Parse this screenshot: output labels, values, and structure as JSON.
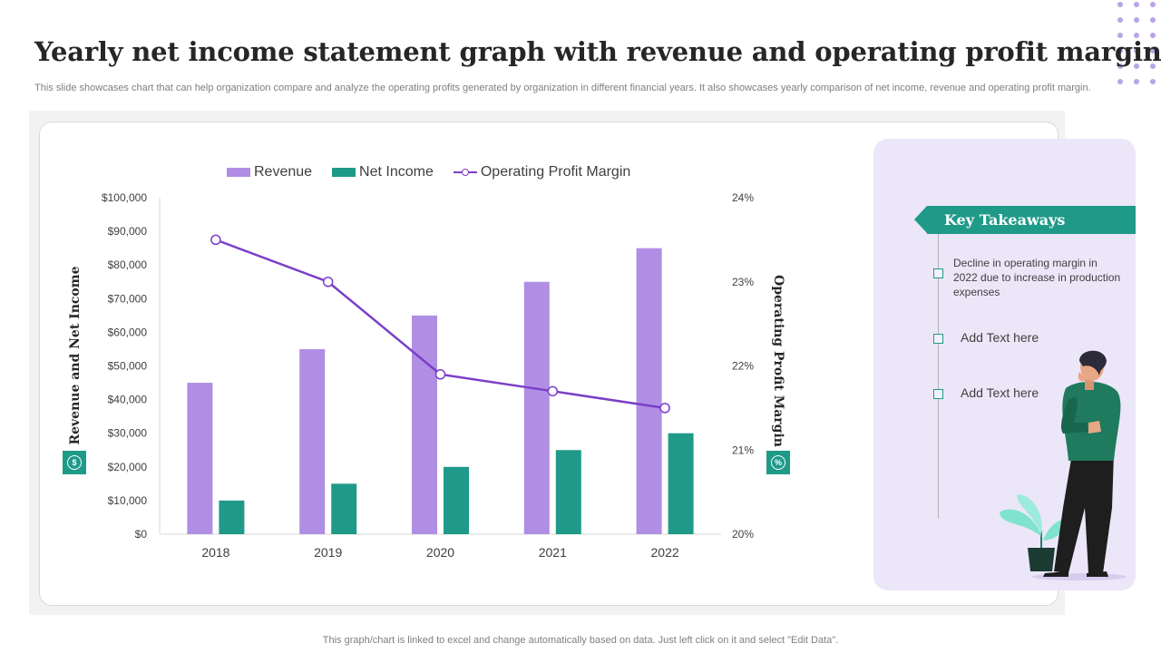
{
  "slide": {
    "title": "Yearly net income statement graph with revenue and operating profit margin",
    "subtitle": "This slide showcases chart that can help organization compare and analyze the operating profits generated by organization in different financial years. It also showcases yearly comparison of net income, revenue and operating profit margin.",
    "footer": "This graph/chart is linked to excel and change automatically based on data. Just left click on it and select \"Edit Data\"."
  },
  "chart_data": {
    "type": "bar",
    "categories": [
      "2018",
      "2019",
      "2020",
      "2021",
      "2022"
    ],
    "series": [
      {
        "name": "Revenue",
        "type": "bar",
        "axis": "left",
        "color": "#b08ee4",
        "values": [
          45000,
          55000,
          65000,
          75000,
          85000
        ]
      },
      {
        "name": "Net Income",
        "type": "bar",
        "axis": "left",
        "color": "#1f9a89",
        "values": [
          10000,
          15000,
          20000,
          25000,
          30000
        ]
      },
      {
        "name": "Operating Profit Margin",
        "type": "line",
        "axis": "right",
        "color": "#7b3fc8",
        "values": [
          23.5,
          23.0,
          21.9,
          21.7,
          21.5
        ]
      }
    ],
    "ylabel": "Revenue and Net Income",
    "y2label": "Operating Profit Margin",
    "ylim": [
      0,
      100000
    ],
    "y2lim": [
      20,
      24
    ],
    "yticks": [
      "$0",
      "$10,000",
      "$20,000",
      "$30,000",
      "$40,000",
      "$50,000",
      "$60,000",
      "$70,000",
      "$80,000",
      "$90,000",
      "$100,000"
    ],
    "y2ticks": [
      "20%",
      "21%",
      "22%",
      "23%",
      "24%"
    ],
    "legend": "top",
    "grid": false
  },
  "icons": {
    "left_axis": "dollar-coin-icon",
    "right_axis": "percent-coin-icon"
  },
  "takeaways": {
    "title": "Key Takeaways",
    "items": [
      "Decline in operating margin in 2022 due to increase in production expenses",
      "Add Text here",
      "Add Text here"
    ]
  },
  "colors": {
    "accent_teal": "#1f9a89",
    "accent_purple": "#b08ee4",
    "line_purple": "#7b3fc8",
    "panel_lavender": "#ece6f9"
  }
}
